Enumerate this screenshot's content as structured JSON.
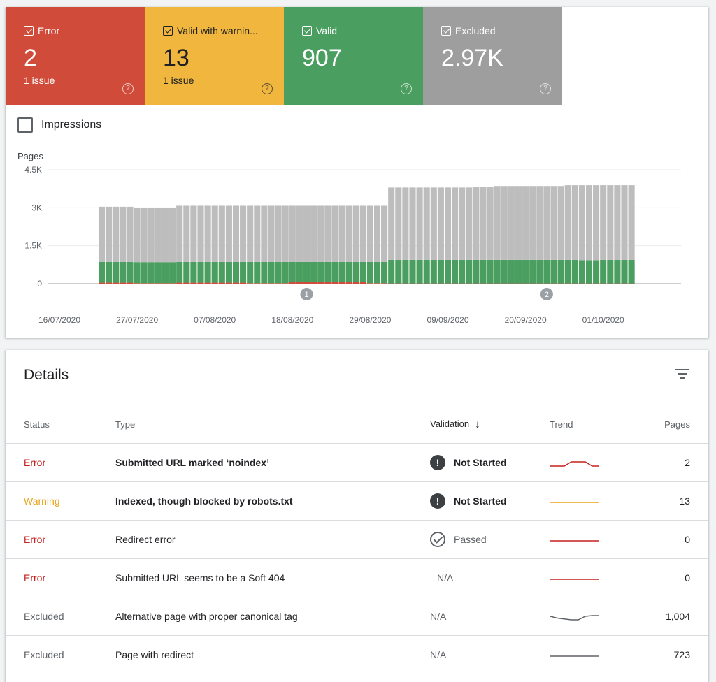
{
  "tiles": [
    {
      "label": "Error",
      "value": "2",
      "sub": "1 issue",
      "color": "#d04b3a"
    },
    {
      "label": "Valid with warnin...",
      "value": "13",
      "sub": "1 issue",
      "color": "#f0b63d"
    },
    {
      "label": "Valid",
      "value": "907",
      "sub": "",
      "color": "#4a9e5f"
    },
    {
      "label": "Excluded",
      "value": "2.97K",
      "sub": "",
      "color": "#9e9e9e"
    }
  ],
  "impressions_label": "Impressions",
  "chart_data": {
    "type": "bar",
    "stacked": true,
    "ylabel": "Pages",
    "y_ticks": [
      "4.5K",
      "3K",
      "1.5K",
      "0"
    ],
    "ylim": [
      0,
      4500
    ],
    "x_ticks": [
      "16/07/2020",
      "27/07/2020",
      "07/08/2020",
      "18/08/2020",
      "29/08/2020",
      "09/09/2020",
      "20/09/2020",
      "01/10/2020"
    ],
    "x_start_date": "16/07/2020",
    "annotations": [
      {
        "label": "1",
        "date": "20/08/2020"
      },
      {
        "label": "2",
        "date": "23/09/2020"
      }
    ],
    "series_colors": {
      "error": "#d04b3a",
      "warning": "#f0b63d",
      "valid": "#4a9e5f",
      "excluded": "#bdbdbd"
    },
    "bars": [
      {
        "date": "22/07/2020",
        "error": 40,
        "valid": 820,
        "excluded": 2180
      },
      {
        "date": "23/07/2020",
        "error": 40,
        "valid": 820,
        "excluded": 2180
      },
      {
        "date": "24/07/2020",
        "error": 40,
        "valid": 820,
        "excluded": 2180
      },
      {
        "date": "25/07/2020",
        "error": 40,
        "valid": 820,
        "excluded": 2180
      },
      {
        "date": "26/07/2020",
        "error": 40,
        "valid": 820,
        "excluded": 2180
      },
      {
        "date": "27/07/2020",
        "error": 20,
        "valid": 830,
        "excluded": 2150
      },
      {
        "date": "28/07/2020",
        "error": 20,
        "valid": 830,
        "excluded": 2150
      },
      {
        "date": "29/07/2020",
        "error": 20,
        "valid": 830,
        "excluded": 2150
      },
      {
        "date": "30/07/2020",
        "error": 20,
        "valid": 830,
        "excluded": 2150
      },
      {
        "date": "31/07/2020",
        "error": 20,
        "valid": 830,
        "excluded": 2150
      },
      {
        "date": "01/08/2020",
        "error": 20,
        "valid": 830,
        "excluded": 2150
      },
      {
        "date": "02/08/2020",
        "error": 40,
        "valid": 820,
        "excluded": 2220
      },
      {
        "date": "03/08/2020",
        "error": 40,
        "valid": 820,
        "excluded": 2220
      },
      {
        "date": "04/08/2020",
        "error": 40,
        "valid": 820,
        "excluded": 2220
      },
      {
        "date": "05/08/2020",
        "error": 40,
        "valid": 820,
        "excluded": 2220
      },
      {
        "date": "06/08/2020",
        "error": 40,
        "valid": 820,
        "excluded": 2220
      },
      {
        "date": "07/08/2020",
        "error": 40,
        "valid": 820,
        "excluded": 2220
      },
      {
        "date": "08/08/2020",
        "error": 40,
        "valid": 820,
        "excluded": 2220
      },
      {
        "date": "09/08/2020",
        "error": 40,
        "valid": 820,
        "excluded": 2220
      },
      {
        "date": "10/08/2020",
        "error": 40,
        "valid": 820,
        "excluded": 2220
      },
      {
        "date": "11/08/2020",
        "error": 40,
        "valid": 820,
        "excluded": 2220
      },
      {
        "date": "12/08/2020",
        "error": 20,
        "valid": 840,
        "excluded": 2220
      },
      {
        "date": "13/08/2020",
        "error": 20,
        "valid": 840,
        "excluded": 2220
      },
      {
        "date": "14/08/2020",
        "error": 20,
        "valid": 840,
        "excluded": 2220
      },
      {
        "date": "15/08/2020",
        "error": 20,
        "valid": 840,
        "excluded": 2220
      },
      {
        "date": "16/08/2020",
        "error": 20,
        "valid": 840,
        "excluded": 2220
      },
      {
        "date": "17/08/2020",
        "error": 20,
        "valid": 840,
        "excluded": 2220
      },
      {
        "date": "18/08/2020",
        "error": 60,
        "valid": 800,
        "excluded": 2220
      },
      {
        "date": "19/08/2020",
        "error": 60,
        "valid": 800,
        "excluded": 2220
      },
      {
        "date": "20/08/2020",
        "error": 60,
        "valid": 800,
        "excluded": 2220
      },
      {
        "date": "21/08/2020",
        "error": 60,
        "valid": 800,
        "excluded": 2220
      },
      {
        "date": "22/08/2020",
        "error": 60,
        "valid": 800,
        "excluded": 2220
      },
      {
        "date": "23/08/2020",
        "error": 60,
        "valid": 800,
        "excluded": 2220
      },
      {
        "date": "24/08/2020",
        "error": 60,
        "valid": 800,
        "excluded": 2220
      },
      {
        "date": "25/08/2020",
        "error": 60,
        "valid": 800,
        "excluded": 2220
      },
      {
        "date": "26/08/2020",
        "error": 60,
        "valid": 800,
        "excluded": 2220
      },
      {
        "date": "27/08/2020",
        "error": 60,
        "valid": 800,
        "excluded": 2220
      },
      {
        "date": "28/08/2020",
        "error": 60,
        "valid": 800,
        "excluded": 2220
      },
      {
        "date": "29/08/2020",
        "error": 20,
        "valid": 840,
        "excluded": 2220
      },
      {
        "date": "30/08/2020",
        "error": 20,
        "valid": 840,
        "excluded": 2220
      },
      {
        "date": "31/08/2020",
        "error": 20,
        "valid": 840,
        "excluded": 2220
      },
      {
        "date": "01/09/2020",
        "error": 10,
        "valid": 930,
        "excluded": 2860
      },
      {
        "date": "02/09/2020",
        "error": 10,
        "valid": 930,
        "excluded": 2860
      },
      {
        "date": "03/09/2020",
        "error": 10,
        "valid": 930,
        "excluded": 2860
      },
      {
        "date": "04/09/2020",
        "error": 10,
        "valid": 930,
        "excluded": 2860
      },
      {
        "date": "05/09/2020",
        "error": 10,
        "valid": 930,
        "excluded": 2860
      },
      {
        "date": "06/09/2020",
        "error": 10,
        "valid": 930,
        "excluded": 2860
      },
      {
        "date": "07/09/2020",
        "error": 10,
        "valid": 930,
        "excluded": 2860
      },
      {
        "date": "08/09/2020",
        "error": 10,
        "valid": 930,
        "excluded": 2860
      },
      {
        "date": "09/09/2020",
        "error": 10,
        "valid": 930,
        "excluded": 2860
      },
      {
        "date": "10/09/2020",
        "error": 10,
        "valid": 930,
        "excluded": 2860
      },
      {
        "date": "11/09/2020",
        "error": 10,
        "valid": 930,
        "excluded": 2860
      },
      {
        "date": "12/09/2020",
        "error": 10,
        "valid": 930,
        "excluded": 2860
      },
      {
        "date": "13/09/2020",
        "error": 10,
        "valid": 930,
        "excluded": 2880
      },
      {
        "date": "14/09/2020",
        "error": 10,
        "valid": 930,
        "excluded": 2880
      },
      {
        "date": "15/09/2020",
        "error": 10,
        "valid": 930,
        "excluded": 2880
      },
      {
        "date": "16/09/2020",
        "error": 10,
        "valid": 930,
        "excluded": 2920
      },
      {
        "date": "17/09/2020",
        "error": 10,
        "valid": 930,
        "excluded": 2920
      },
      {
        "date": "18/09/2020",
        "error": 10,
        "valid": 930,
        "excluded": 2920
      },
      {
        "date": "19/09/2020",
        "error": 10,
        "valid": 930,
        "excluded": 2920
      },
      {
        "date": "20/09/2020",
        "error": 10,
        "valid": 930,
        "excluded": 2920
      },
      {
        "date": "21/09/2020",
        "error": 10,
        "valid": 930,
        "excluded": 2920
      },
      {
        "date": "22/09/2020",
        "error": 10,
        "valid": 930,
        "excluded": 2920
      },
      {
        "date": "23/09/2020",
        "error": 10,
        "valid": 930,
        "excluded": 2920
      },
      {
        "date": "24/09/2020",
        "error": 10,
        "valid": 930,
        "excluded": 2920
      },
      {
        "date": "25/09/2020",
        "error": 10,
        "valid": 930,
        "excluded": 2920
      },
      {
        "date": "26/09/2020",
        "error": 10,
        "valid": 930,
        "excluded": 2950
      },
      {
        "date": "27/09/2020",
        "error": 10,
        "valid": 930,
        "excluded": 2950
      },
      {
        "date": "28/09/2020",
        "error": 10,
        "valid": 920,
        "excluded": 2960
      },
      {
        "date": "29/09/2020",
        "error": 10,
        "valid": 920,
        "excluded": 2960
      },
      {
        "date": "30/09/2020",
        "error": 10,
        "valid": 920,
        "excluded": 2960
      },
      {
        "date": "01/10/2020",
        "error": 10,
        "valid": 930,
        "excluded": 2950
      },
      {
        "date": "02/10/2020",
        "error": 10,
        "valid": 930,
        "excluded": 2950
      },
      {
        "date": "03/10/2020",
        "error": 10,
        "valid": 930,
        "excluded": 2950
      },
      {
        "date": "04/10/2020",
        "error": 10,
        "valid": 930,
        "excluded": 2950
      },
      {
        "date": "05/10/2020",
        "error": 10,
        "valid": 930,
        "excluded": 2950
      }
    ]
  },
  "details": {
    "title": "Details",
    "columns": {
      "status": "Status",
      "type": "Type",
      "validation": "Validation",
      "trend": "Trend",
      "pages": "Pages"
    },
    "rows": [
      {
        "status": "Error",
        "status_kind": "error",
        "type": "Submitted URL marked ‘noindex’",
        "type_bold": true,
        "validation": "Not Started",
        "validation_kind": "not-started",
        "trend": [
          2,
          2,
          2,
          3,
          3,
          3,
          2,
          2
        ],
        "trend_color": "#c5221f",
        "pages": "2"
      },
      {
        "status": "Warning",
        "status_kind": "warning",
        "type": "Indexed, though blocked by robots.txt",
        "type_bold": true,
        "validation": "Not Started",
        "validation_kind": "not-started",
        "trend": [
          13,
          13,
          13,
          13,
          13,
          13,
          13,
          13
        ],
        "trend_color": "#e8a317",
        "pages": "13"
      },
      {
        "status": "Error",
        "status_kind": "error",
        "type": "Redirect error",
        "type_bold": false,
        "validation": "Passed",
        "validation_kind": "passed",
        "trend": [
          0,
          0,
          0,
          0,
          0,
          0,
          0,
          0
        ],
        "trend_color": "#c5221f",
        "pages": "0"
      },
      {
        "status": "Error",
        "status_kind": "error",
        "type": "Submitted URL seems to be a Soft 404",
        "type_bold": false,
        "validation": "N/A",
        "validation_kind": "na",
        "trend": [
          0,
          0,
          0,
          0,
          0,
          0,
          0,
          0
        ],
        "trend_color": "#c5221f",
        "pages": "0"
      },
      {
        "status": "Excluded",
        "status_kind": "excluded",
        "type": "Alternative page with proper canonical tag",
        "type_bold": false,
        "validation": "N/A",
        "validation_kind": "na-left",
        "trend": [
          1000,
          990,
          985,
          980,
          980,
          1000,
          1004,
          1004
        ],
        "trend_color": "#5f6368",
        "pages": "1,004"
      },
      {
        "status": "Excluded",
        "status_kind": "excluded",
        "type": "Page with redirect",
        "type_bold": false,
        "validation": "N/A",
        "validation_kind": "na-left",
        "trend": [
          723,
          723,
          723,
          723,
          723,
          723,
          723,
          723
        ],
        "trend_color": "#5f6368",
        "pages": "723"
      }
    ]
  }
}
